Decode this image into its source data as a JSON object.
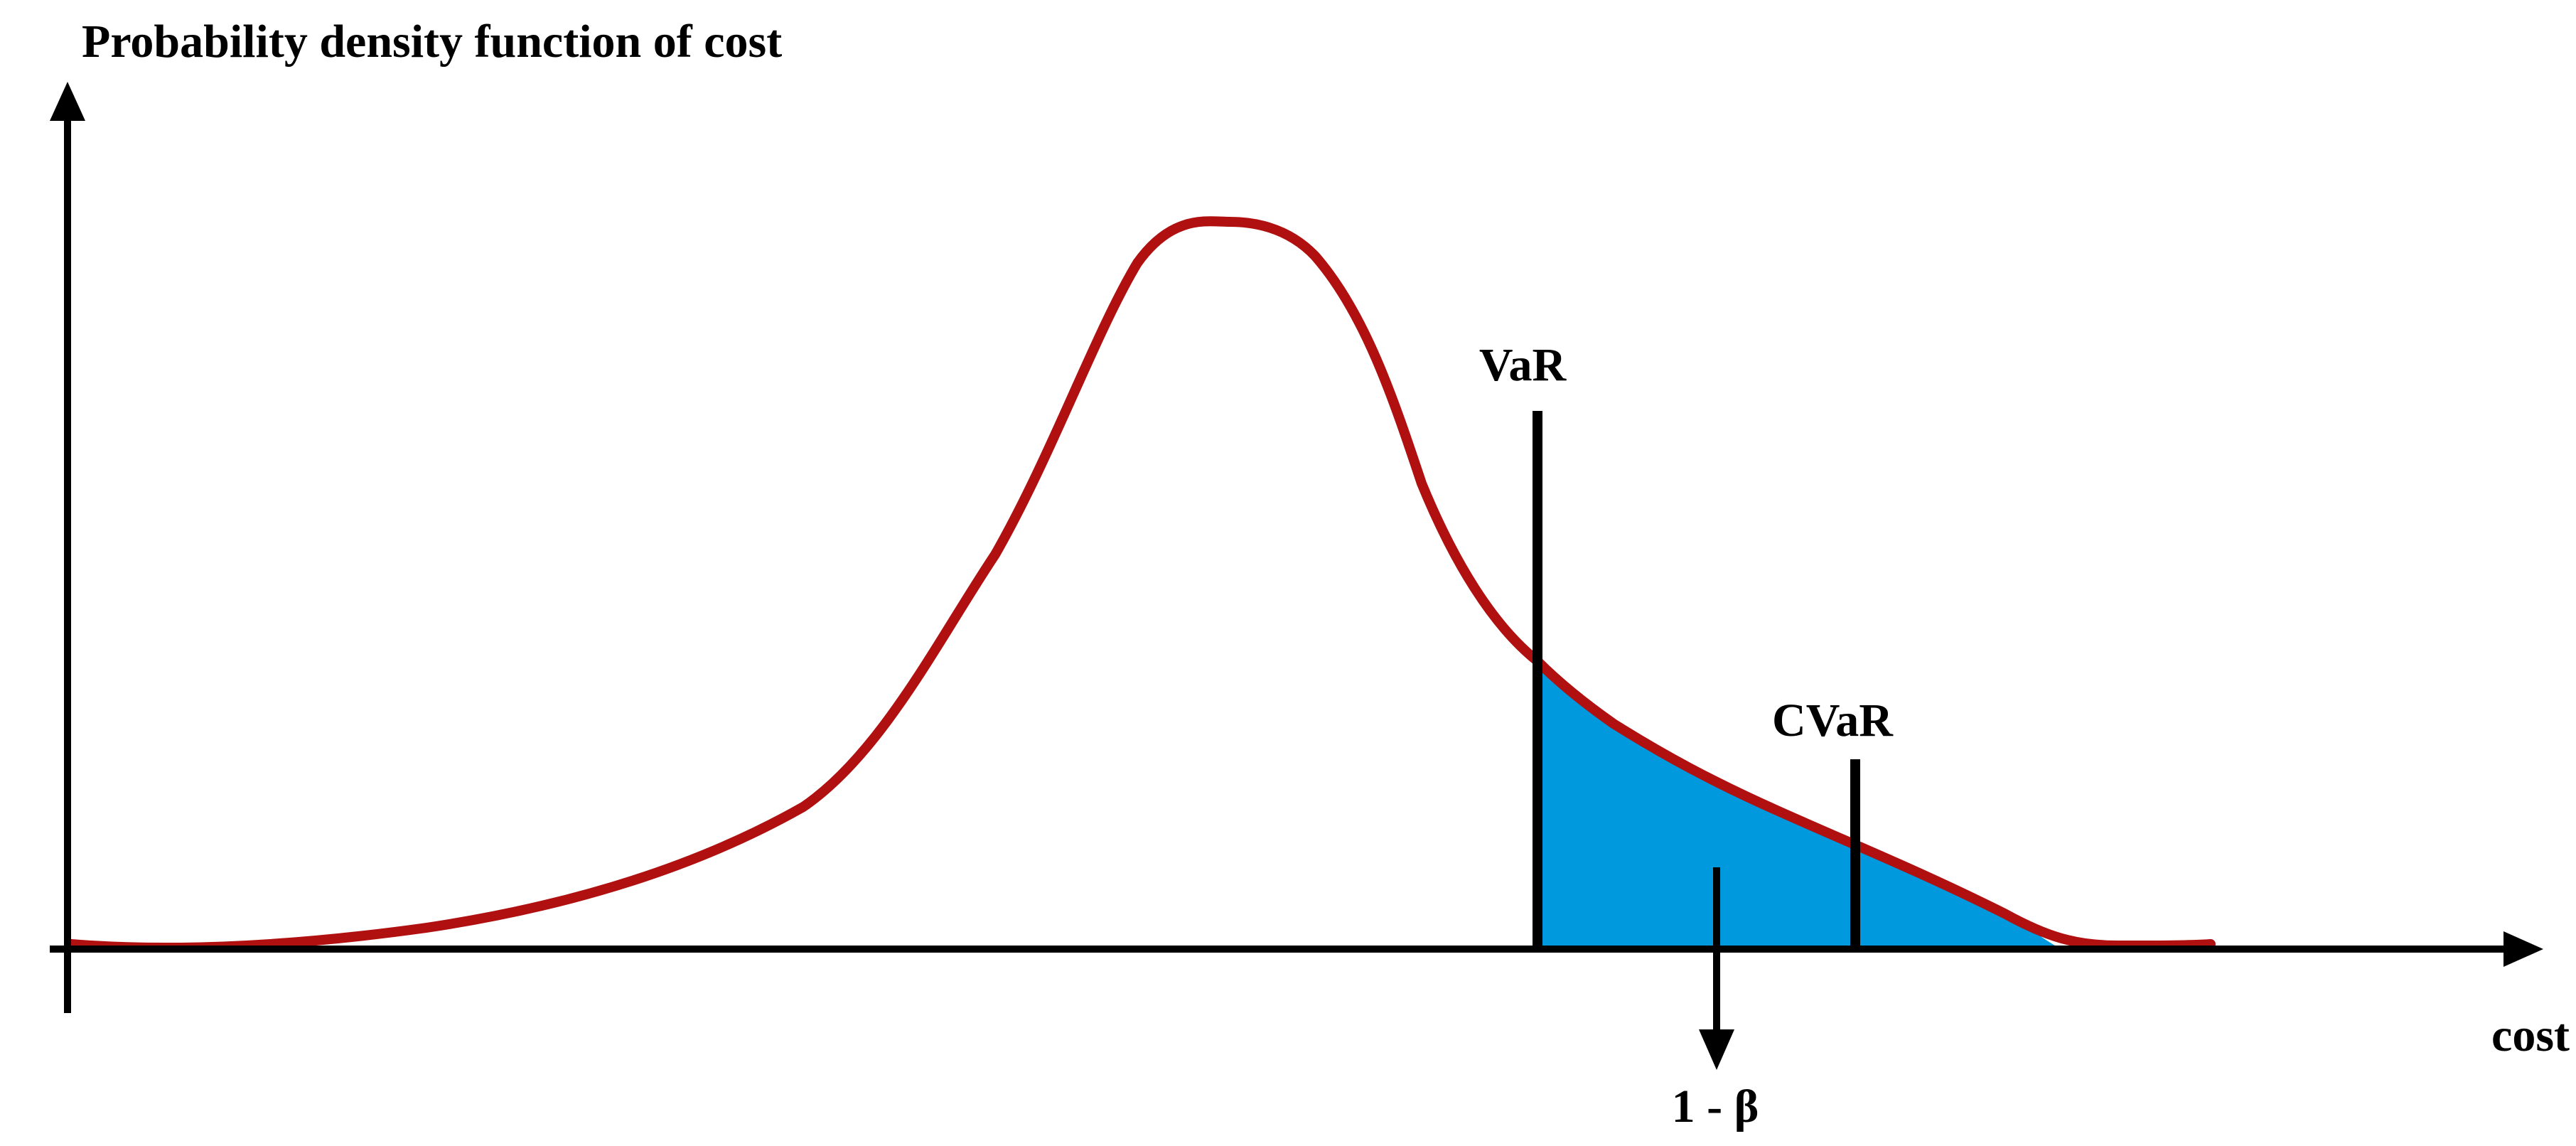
{
  "title": "Probability density function of cost",
  "x_axis_label": "cost",
  "markers": {
    "var_label": "VaR",
    "cvar_label": "CVaR",
    "tail_label": "1 - β"
  },
  "colors": {
    "curve": "#B01010",
    "tail_fill": "#0099DD",
    "axes": "#000000"
  }
}
